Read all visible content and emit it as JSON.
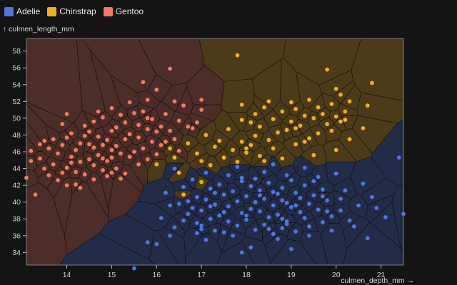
{
  "legend": [
    {
      "label": "Adelie",
      "color": "#4f75e1"
    },
    {
      "label": "Chinstrap",
      "color": "#f0ad28"
    },
    {
      "label": "Gentoo",
      "color": "#f27962"
    }
  ],
  "colors": {
    "background": "#141414",
    "cell_opacity": 0.26
  },
  "chart_data": {
    "type": "scatter",
    "title": "",
    "xlabel": "culmen_depth_mm →",
    "ylabel": "↑ culmen_length_mm",
    "xlim": [
      13.1,
      21.5
    ],
    "ylim": [
      32.5,
      59.5
    ],
    "xticks": [
      14,
      15,
      16,
      17,
      18,
      19,
      20,
      21
    ],
    "yticks": [
      34,
      36,
      38,
      40,
      42,
      44,
      46,
      48,
      50,
      52,
      54,
      56,
      58
    ],
    "grid": false,
    "legend_position": "top-left",
    "overlay": "voronoi cells colored by species",
    "series": [
      {
        "name": "Adelie",
        "color": "#4f75e1",
        "points": [
          [
            15.5,
            32.1
          ],
          [
            17.9,
            34.0
          ],
          [
            18.1,
            34.6
          ],
          [
            19.0,
            34.4
          ],
          [
            16.0,
            35.0
          ],
          [
            15.8,
            35.2
          ],
          [
            17.1,
            35.5
          ],
          [
            18.7,
            35.6
          ],
          [
            20.7,
            35.7
          ],
          [
            16.3,
            36.0
          ],
          [
            18.6,
            36.2
          ],
          [
            17.5,
            36.4
          ],
          [
            19.1,
            36.5
          ],
          [
            17.3,
            36.6
          ],
          [
            18.2,
            36.7
          ],
          [
            17.0,
            36.8
          ],
          [
            16.4,
            37.0
          ],
          [
            18.8,
            36.9
          ],
          [
            19.4,
            37.1
          ],
          [
            17.8,
            37.2
          ],
          [
            18.4,
            37.3
          ],
          [
            16.9,
            37.5
          ],
          [
            19.7,
            37.6
          ],
          [
            17.6,
            37.7
          ],
          [
            18.9,
            37.7
          ],
          [
            16.6,
            37.8
          ],
          [
            20.3,
            37.8
          ],
          [
            18.0,
            37.9
          ],
          [
            17.2,
            38.0
          ],
          [
            19.3,
            38.1
          ],
          [
            16.1,
            38.1
          ],
          [
            18.5,
            38.2
          ],
          [
            19.9,
            38.3
          ],
          [
            17.4,
            38.4
          ],
          [
            18.7,
            38.5
          ],
          [
            16.7,
            38.6
          ],
          [
            21.5,
            38.6
          ],
          [
            17.9,
            38.7
          ],
          [
            19.2,
            38.8
          ],
          [
            18.3,
            38.9
          ],
          [
            17.0,
            39.0
          ],
          [
            20.1,
            39.0
          ],
          [
            19.6,
            39.1
          ],
          [
            18.1,
            39.2
          ],
          [
            16.8,
            39.3
          ],
          [
            19.0,
            39.4
          ],
          [
            17.6,
            39.5
          ],
          [
            18.6,
            39.6
          ],
          [
            20.5,
            39.6
          ],
          [
            17.3,
            39.7
          ],
          [
            19.4,
            39.8
          ],
          [
            16.5,
            39.8
          ],
          [
            18.9,
            39.9
          ],
          [
            18.2,
            40.0
          ],
          [
            17.8,
            40.1
          ],
          [
            19.8,
            40.2
          ],
          [
            17.1,
            40.3
          ],
          [
            18.4,
            40.4
          ],
          [
            19.2,
            40.5
          ],
          [
            20.8,
            40.6
          ],
          [
            16.9,
            40.6
          ],
          [
            18.0,
            40.7
          ],
          [
            19.5,
            40.8
          ],
          [
            17.5,
            40.9
          ],
          [
            18.7,
            41.0
          ],
          [
            16.2,
            41.1
          ],
          [
            19.1,
            41.1
          ],
          [
            17.7,
            41.3
          ],
          [
            18.3,
            41.4
          ],
          [
            20.2,
            41.4
          ],
          [
            19.7,
            41.5
          ],
          [
            17.2,
            41.6
          ],
          [
            18.8,
            41.7
          ],
          [
            16.6,
            41.8
          ],
          [
            18.1,
            41.9
          ],
          [
            19.3,
            42.0
          ],
          [
            17.4,
            42.1
          ],
          [
            20.6,
            42.2
          ],
          [
            18.5,
            42.3
          ],
          [
            17.9,
            42.5
          ],
          [
            19.0,
            42.6
          ],
          [
            16.8,
            42.7
          ],
          [
            18.2,
            42.8
          ],
          [
            19.6,
            43.0
          ],
          [
            17.6,
            43.2
          ],
          [
            18.9,
            43.2
          ],
          [
            20.0,
            43.4
          ],
          [
            17.1,
            43.5
          ],
          [
            18.4,
            43.6
          ],
          [
            16.4,
            44.0
          ],
          [
            19.3,
            44.1
          ],
          [
            17.8,
            44.2
          ],
          [
            18.6,
            44.5
          ],
          [
            21.1,
            38.2
          ],
          [
            20.9,
            39.3
          ],
          [
            19.9,
            36.6
          ],
          [
            17.7,
            36.0
          ],
          [
            18.8,
            40.2
          ],
          [
            17.3,
            41.1
          ],
          [
            19.5,
            42.5
          ],
          [
            18.0,
            38.4
          ],
          [
            20.4,
            37.1
          ],
          [
            16.3,
            39.6
          ],
          [
            18.5,
            36.8
          ],
          [
            17.0,
            37.2
          ],
          [
            19.8,
            38.9
          ],
          [
            18.3,
            40.8
          ],
          [
            17.5,
            38.8
          ],
          [
            19.1,
            39.6
          ],
          [
            16.7,
            40.1
          ],
          [
            18.9,
            37.4
          ],
          [
            17.9,
            42.9
          ],
          [
            20.1,
            40.4
          ],
          [
            18.6,
            41.2
          ],
          [
            21.4,
            45.3
          ],
          [
            19.4,
            36.0
          ],
          [
            17.2,
            39.5
          ],
          [
            18.8,
            38.0
          ],
          [
            16.9,
            36.3
          ],
          [
            19.7,
            40.7
          ]
        ]
      },
      {
        "name": "Chinstrap",
        "color": "#f0ad28",
        "points": [
          [
            16.6,
            40.9
          ],
          [
            17.0,
            42.4
          ],
          [
            16.5,
            43.5
          ],
          [
            17.2,
            44.4
          ],
          [
            17.8,
            44.8
          ],
          [
            16.4,
            45.3
          ],
          [
            17.5,
            45.3
          ],
          [
            18.3,
            45.5
          ],
          [
            19.5,
            45.6
          ],
          [
            16.9,
            45.8
          ],
          [
            18.0,
            45.9
          ],
          [
            17.7,
            46.2
          ],
          [
            16.3,
            46.4
          ],
          [
            18.6,
            46.4
          ],
          [
            20.0,
            46.2
          ],
          [
            17.3,
            46.6
          ],
          [
            18.1,
            46.8
          ],
          [
            19.1,
            46.9
          ],
          [
            16.7,
            47.0
          ],
          [
            17.9,
            47.2
          ],
          [
            18.5,
            47.4
          ],
          [
            20.3,
            47.5
          ],
          [
            19.4,
            47.6
          ],
          [
            18.2,
            47.9
          ],
          [
            17.1,
            48.0
          ],
          [
            19.6,
            48.2
          ],
          [
            18.7,
            48.3
          ],
          [
            19.9,
            48.5
          ],
          [
            18.9,
            48.6
          ],
          [
            17.6,
            48.7
          ],
          [
            20.6,
            48.8
          ],
          [
            18.3,
            49.0
          ],
          [
            19.2,
            49.1
          ],
          [
            19.8,
            49.3
          ],
          [
            18.1,
            49.5
          ],
          [
            20.1,
            49.6
          ],
          [
            19.0,
            49.6
          ],
          [
            17.9,
            49.8
          ],
          [
            18.6,
            49.9
          ],
          [
            19.5,
            50.0
          ],
          [
            20.0,
            50.2
          ],
          [
            19.3,
            50.3
          ],
          [
            18.2,
            50.5
          ],
          [
            19.7,
            50.5
          ],
          [
            20.2,
            50.8
          ],
          [
            18.8,
            50.8
          ],
          [
            19.1,
            51.1
          ],
          [
            18.4,
            51.3
          ],
          [
            19.6,
            51.3
          ],
          [
            20.7,
            51.5
          ],
          [
            17.9,
            51.6
          ],
          [
            19.9,
            51.7
          ],
          [
            20.3,
            52.0
          ],
          [
            19.4,
            52.2
          ],
          [
            20.1,
            52.8
          ],
          [
            20.0,
            53.5
          ],
          [
            19.0,
            51.9
          ],
          [
            18.5,
            52.0
          ],
          [
            20.8,
            54.2
          ],
          [
            19.8,
            55.8
          ],
          [
            17.8,
            57.5
          ],
          [
            20.2,
            49.8
          ],
          [
            18.0,
            46.4
          ],
          [
            19.3,
            47.2
          ],
          [
            17.4,
            47.3
          ],
          [
            18.8,
            45.2
          ],
          [
            16.0,
            44.5
          ],
          [
            17.0,
            44.9
          ],
          [
            18.4,
            44.9
          ],
          [
            19.1,
            48.8
          ]
        ]
      },
      {
        "name": "Gentoo",
        "color": "#f27962",
        "points": [
          [
            13.1,
            42.9
          ],
          [
            13.2,
            44.9
          ],
          [
            13.2,
            46.1
          ],
          [
            13.3,
            40.9
          ],
          [
            13.4,
            45.2
          ],
          [
            13.5,
            44.0
          ],
          [
            13.5,
            47.3
          ],
          [
            13.6,
            43.2
          ],
          [
            13.6,
            46.4
          ],
          [
            13.7,
            44.5
          ],
          [
            13.7,
            47.5
          ],
          [
            13.8,
            42.6
          ],
          [
            13.8,
            45.8
          ],
          [
            13.9,
            43.5
          ],
          [
            13.9,
            46.8
          ],
          [
            14.0,
            44.1
          ],
          [
            14.0,
            47.7
          ],
          [
            14.0,
            42.0
          ],
          [
            14.1,
            45.4
          ],
          [
            14.1,
            48.2
          ],
          [
            14.2,
            43.6
          ],
          [
            14.2,
            46.2
          ],
          [
            14.3,
            41.7
          ],
          [
            14.3,
            44.8
          ],
          [
            14.3,
            47.0
          ],
          [
            14.4,
            49.1
          ],
          [
            14.4,
            43.3
          ],
          [
            14.5,
            45.1
          ],
          [
            14.5,
            46.9
          ],
          [
            14.5,
            48.4
          ],
          [
            14.6,
            42.7
          ],
          [
            14.6,
            44.4
          ],
          [
            14.6,
            46.5
          ],
          [
            14.7,
            45.6
          ],
          [
            14.7,
            47.8
          ],
          [
            14.8,
            43.8
          ],
          [
            14.8,
            45.2
          ],
          [
            14.8,
            46.8
          ],
          [
            14.8,
            50.1
          ],
          [
            14.9,
            44.9
          ],
          [
            14.9,
            47.4
          ],
          [
            15.0,
            45.3
          ],
          [
            15.0,
            46.2
          ],
          [
            15.0,
            48.5
          ],
          [
            15.0,
            51.2
          ],
          [
            15.1,
            44.0
          ],
          [
            15.1,
            46.7
          ],
          [
            15.1,
            48.9
          ],
          [
            15.2,
            45.8
          ],
          [
            15.2,
            50.4
          ],
          [
            15.3,
            47.5
          ],
          [
            15.3,
            49.5
          ],
          [
            15.4,
            45.4
          ],
          [
            15.4,
            48.1
          ],
          [
            15.5,
            46.0
          ],
          [
            15.5,
            50.6
          ],
          [
            15.6,
            47.7
          ],
          [
            15.6,
            49.2
          ],
          [
            15.7,
            46.4
          ],
          [
            15.7,
            50.8
          ],
          [
            15.8,
            48.7
          ],
          [
            15.8,
            45.1
          ],
          [
            15.9,
            47.2
          ],
          [
            15.9,
            49.9
          ],
          [
            16.0,
            48.4
          ],
          [
            16.0,
            53.4
          ],
          [
            16.1,
            46.8
          ],
          [
            16.1,
            49.0
          ],
          [
            16.2,
            50.5
          ],
          [
            16.3,
            48.5
          ],
          [
            16.4,
            47.5
          ],
          [
            16.5,
            49.7
          ],
          [
            16.6,
            51.5
          ],
          [
            16.8,
            48.8
          ],
          [
            17.0,
            51.0
          ],
          [
            15.7,
            54.3
          ],
          [
            15.8,
            52.2
          ],
          [
            15.3,
            43.4
          ],
          [
            14.2,
            42.1
          ],
          [
            16.3,
            55.9
          ],
          [
            17.0,
            52.2
          ],
          [
            16.4,
            52.0
          ],
          [
            14.6,
            49.6
          ],
          [
            15.6,
            44.5
          ],
          [
            16.0,
            45.7
          ],
          [
            16.9,
            49.5
          ],
          [
            14.0,
            50.5
          ],
          [
            15.2,
            42.8
          ],
          [
            13.4,
            46.9
          ],
          [
            13.9,
            49.3
          ],
          [
            14.9,
            43.1
          ],
          [
            16.5,
            46.1
          ],
          [
            15.4,
            51.9
          ],
          [
            14.4,
            47.9
          ],
          [
            15.8,
            50.0
          ],
          [
            16.2,
            47.2
          ],
          [
            14.7,
            50.8
          ],
          [
            15.0,
            43.5
          ],
          [
            16.7,
            49.0
          ],
          [
            14.1,
            44.7
          ]
        ]
      }
    ]
  }
}
